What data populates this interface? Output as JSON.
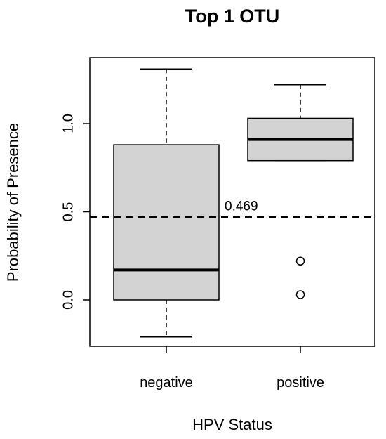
{
  "chart_data": {
    "type": "boxplot",
    "title": "Top 1 OTU",
    "xlabel": "HPV Status",
    "ylabel": "Probability of Presence",
    "categories": [
      "negative",
      "positive"
    ],
    "ylim": [
      -0.27,
      1.35
    ],
    "yticks": [
      0.0,
      0.5,
      1.0
    ],
    "ytick_labels": [
      "0.0",
      "0.5",
      "1.0"
    ],
    "boxes": [
      {
        "category": "negative",
        "whisker_low": -0.21,
        "q1": 0.0,
        "median": 0.17,
        "q3": 0.88,
        "whisker_high": 1.31,
        "outliers": []
      },
      {
        "category": "positive",
        "whisker_low": 0.79,
        "q1": 0.79,
        "median": 0.91,
        "q3": 1.03,
        "whisker_high": 1.22,
        "outliers": [
          0.22,
          0.03
        ]
      }
    ],
    "reference_line": {
      "value": 0.469,
      "label": "0.469",
      "style": "dashed"
    },
    "box_fill": "#d3d3d3",
    "grid": false
  }
}
